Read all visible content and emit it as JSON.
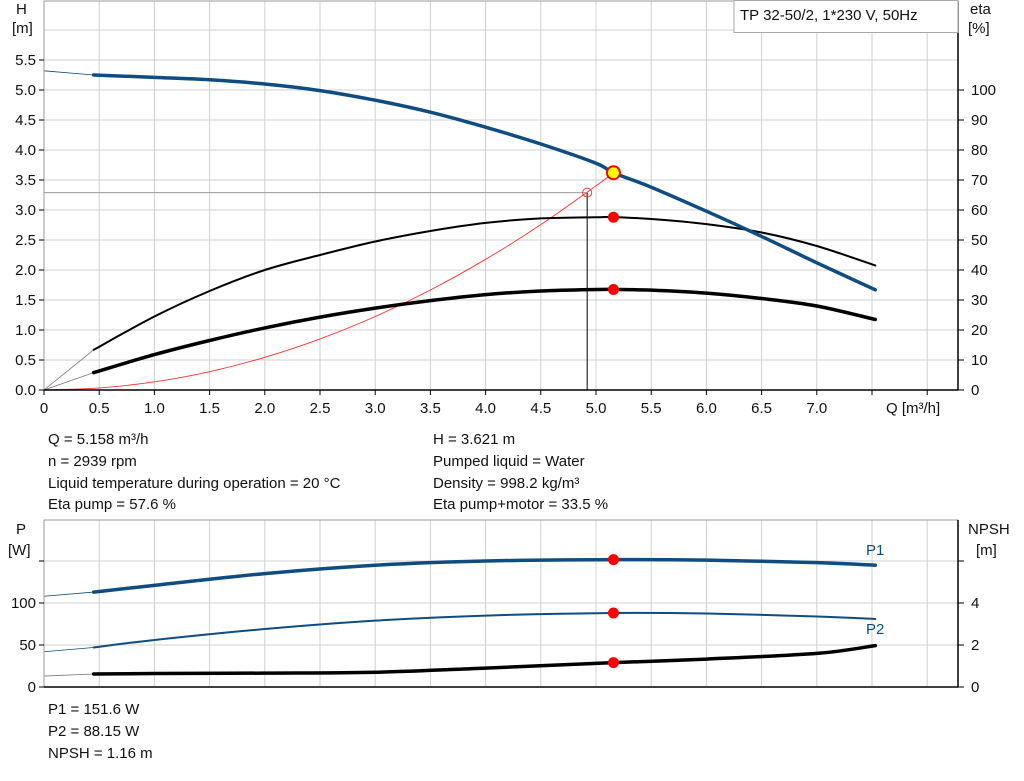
{
  "legend_box": "TP 32-50/2, 1*230 V, 50Hz",
  "colors": {
    "head": "#0f4c81",
    "power": "#0f4c81",
    "eta": "#000000",
    "system": "#ff3030",
    "duty_point": "#ff0000",
    "operating_point_fill": "#ffff00",
    "grid": "#d0d0d0"
  },
  "chart_data": [
    {
      "type": "line",
      "xlabel": "Q [m³/h]",
      "ylabel_left": [
        "H",
        "[m]"
      ],
      "ylabel_right": [
        "eta",
        "[%]"
      ],
      "xlim": [
        0,
        8.5
      ],
      "ylim_left": [
        0,
        6.5
      ],
      "ylim_right": [
        0,
        130
      ],
      "x_ticks": [
        "0",
        "0.5",
        "1.0",
        "1.5",
        "2.0",
        "2.5",
        "3.0",
        "3.5",
        "4.0",
        "4.5",
        "5.0",
        "5.5",
        "6.0",
        "6.5",
        "7.0"
      ],
      "y_ticks_left": [
        "0.0",
        "0.5",
        "1.0",
        "1.5",
        "2.0",
        "2.5",
        "3.0",
        "3.5",
        "4.0",
        "4.5",
        "5.0",
        "5.5"
      ],
      "y_ticks_right": [
        "0",
        "10",
        "20",
        "30",
        "40",
        "50",
        "60",
        "70",
        "80",
        "90",
        "100"
      ],
      "grid": true,
      "series": [
        {
          "id": "head",
          "axis": "left",
          "x": [
            0.45,
            1.0,
            1.5,
            2.0,
            2.5,
            3.0,
            3.5,
            4.0,
            4.5,
            5.0,
            5.158,
            5.5,
            6.0,
            6.5,
            7.0,
            7.53
          ],
          "y": [
            5.25,
            5.21,
            5.17,
            5.1,
            4.99,
            4.83,
            4.63,
            4.38,
            4.1,
            3.78,
            3.621,
            3.38,
            2.98,
            2.56,
            2.12,
            1.67
          ],
          "extrapolated_from": [
            0,
            5.32
          ]
        },
        {
          "id": "eta_pump",
          "axis": "right",
          "x": [
            0.45,
            1.0,
            1.5,
            2.0,
            2.5,
            3.0,
            3.5,
            4.0,
            4.5,
            5.0,
            5.158,
            5.5,
            6.0,
            6.5,
            7.0,
            7.53
          ],
          "y": [
            13.4,
            24.5,
            33,
            40,
            45,
            49.5,
            53,
            55.7,
            57.2,
            57.6,
            57.6,
            57,
            55.3,
            52.5,
            48,
            41.5
          ],
          "extrapolated_from": [
            0,
            0
          ]
        },
        {
          "id": "eta_pump_motor",
          "axis": "right",
          "x": [
            0.45,
            1.0,
            1.5,
            2.0,
            2.5,
            3.0,
            3.5,
            4.0,
            4.5,
            5.0,
            5.158,
            5.5,
            6.0,
            6.5,
            7.0,
            7.53
          ],
          "y": [
            5.8,
            11.8,
            16.5,
            20.7,
            24.3,
            27.3,
            29.8,
            31.8,
            33,
            33.5,
            33.5,
            33.3,
            32.3,
            30.5,
            28,
            23.5
          ],
          "extrapolated_from": [
            0,
            0
          ]
        },
        {
          "id": "system_curve",
          "axis": "left",
          "x": [
            0,
            0.5,
            1.0,
            1.5,
            2.0,
            2.5,
            3.0,
            3.5,
            4.0,
            4.5,
            5.0,
            5.158
          ],
          "y": [
            0,
            0.034,
            0.136,
            0.306,
            0.544,
            0.851,
            1.225,
            1.667,
            2.178,
            2.756,
            3.403,
            3.621
          ]
        }
      ],
      "operating_point": {
        "Q": 5.158,
        "H": 3.621,
        "eta_pump": 57.6,
        "eta_pump_motor": 33.5
      },
      "requested_point": {
        "Q": 4.92,
        "H": 3.29
      }
    },
    {
      "type": "line",
      "xlim": [
        0,
        8.5
      ],
      "ylabel_left": [
        "P",
        "[W]"
      ],
      "ylabel_right": [
        "NPSH",
        "[m]"
      ],
      "ylim_left": [
        0,
        200
      ],
      "ylim_right": [
        0,
        8
      ],
      "y_ticks_left": [
        "0",
        "50",
        "100"
      ],
      "y_ticks_right": [
        "0",
        "2",
        "4"
      ],
      "grid": true,
      "series": [
        {
          "id": "P1",
          "name": "P1",
          "axis": "left",
          "x": [
            0.45,
            1.0,
            2.0,
            3.0,
            4.0,
            5.158,
            6.0,
            7.0,
            7.53
          ],
          "y": [
            113,
            121,
            135,
            145,
            150,
            151.6,
            151,
            148,
            145
          ],
          "extrapolated_from": [
            0,
            108
          ]
        },
        {
          "id": "P2",
          "name": "P2",
          "axis": "left",
          "x": [
            0.45,
            1.0,
            2.0,
            3.0,
            4.0,
            5.158,
            6.0,
            7.0,
            7.53
          ],
          "y": [
            47,
            56,
            69,
            79,
            85,
            88.15,
            87.5,
            84,
            81
          ],
          "extrapolated_from": [
            0,
            42
          ]
        },
        {
          "id": "NPSH",
          "axis": "right",
          "x": [
            0.45,
            1.0,
            2.0,
            3.0,
            4.0,
            5.158,
            6.0,
            7.0,
            7.53
          ],
          "y": [
            0.62,
            0.64,
            0.66,
            0.7,
            0.9,
            1.16,
            1.33,
            1.6,
            1.97
          ],
          "extrapolated_from": [
            0,
            0.52
          ]
        }
      ],
      "operating_point": {
        "Q": 5.158,
        "P1": 151.6,
        "P2": 88.15,
        "NPSH": 1.16
      }
    }
  ],
  "info": {
    "q": "Q = 5.158 m³/h",
    "h": "H = 3.621 m",
    "n": "n = 2939 rpm",
    "liquid": "Pumped liquid = Water",
    "temp": "Liquid temperature during operation = 20 °C",
    "density": "Density = 998.2 kg/m³",
    "eta_pump": "Eta pump = 57.6 %",
    "eta_pm": "Eta pump+motor = 33.5 %",
    "p1": "P1 = 151.6 W",
    "p2": "P2 = 88.15 W",
    "npsh": "NPSH = 1.16 m"
  }
}
